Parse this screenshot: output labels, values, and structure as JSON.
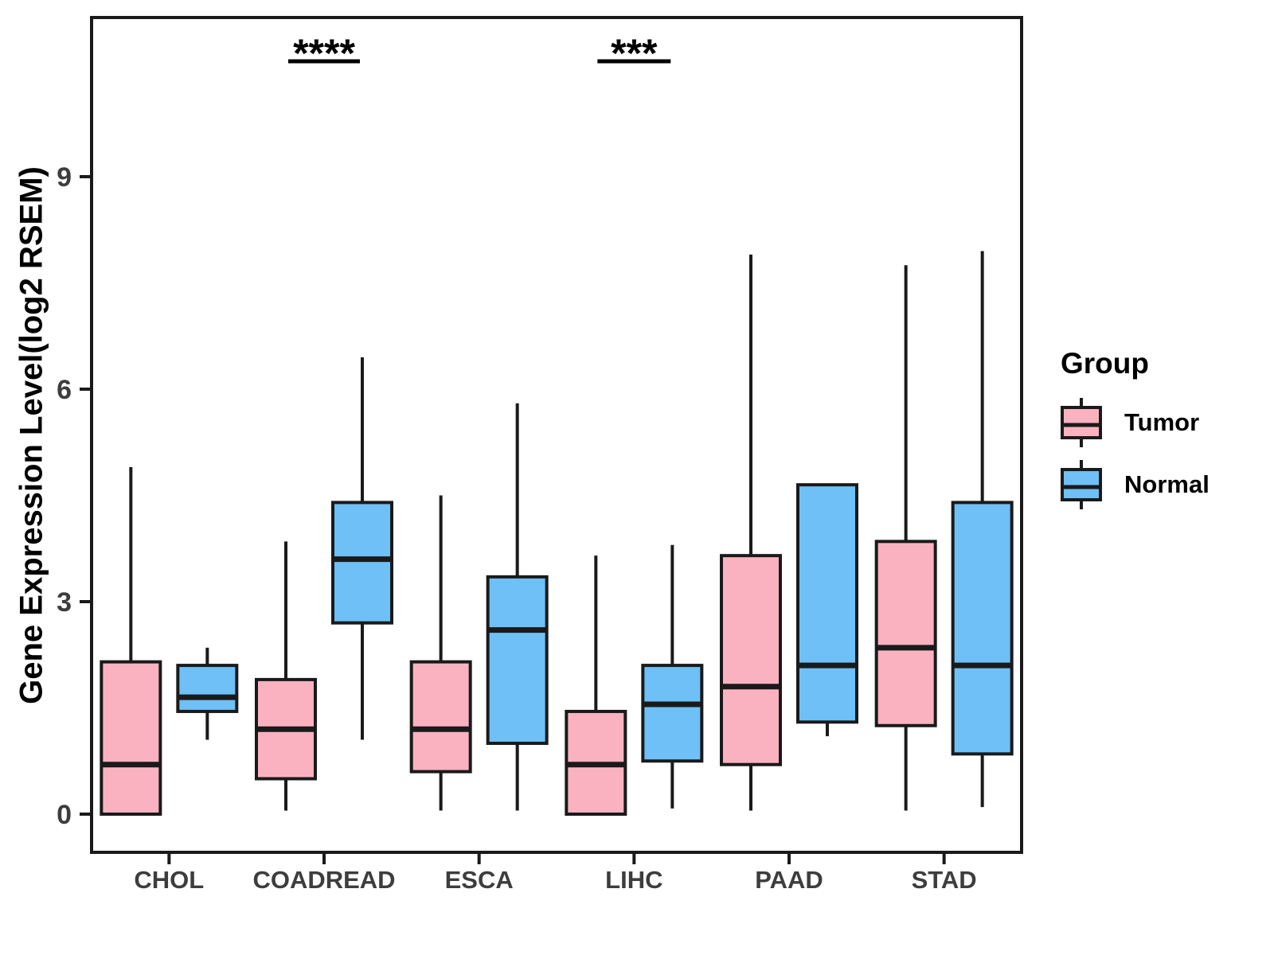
{
  "chart_data": {
    "type": "boxplot",
    "title": "",
    "ylabel": "Gene Expression Level(log2 RSEM)",
    "xlabel": "",
    "yticks": [
      0,
      3,
      6,
      9
    ],
    "ylim": [
      -0.55,
      11.3
    ],
    "grid": false,
    "legend_title": "Group",
    "legend_position": "right",
    "categories": [
      "CHOL",
      "COADREAD",
      "ESCA",
      "LIHC",
      "PAAD",
      "STAD"
    ],
    "series": [
      {
        "name": "Tumor",
        "color": "#FAB2C1",
        "boxes": [
          {
            "low": 0.0,
            "q1": 0.0,
            "median": 0.7,
            "q3": 2.15,
            "high": 4.9
          },
          {
            "low": 0.05,
            "q1": 0.5,
            "median": 1.2,
            "q3": 1.9,
            "high": 3.85
          },
          {
            "low": 0.05,
            "q1": 0.6,
            "median": 1.2,
            "q3": 2.15,
            "high": 4.5
          },
          {
            "low": 0.0,
            "q1": 0.0,
            "median": 0.7,
            "q3": 1.45,
            "high": 3.65
          },
          {
            "low": 0.05,
            "q1": 0.7,
            "median": 1.8,
            "q3": 3.65,
            "high": 7.9
          },
          {
            "low": 0.05,
            "q1": 1.25,
            "median": 2.35,
            "q3": 3.85,
            "high": 7.75
          }
        ]
      },
      {
        "name": "Normal",
        "color": "#6EC0F6",
        "boxes": [
          {
            "low": 1.05,
            "q1": 1.45,
            "median": 1.65,
            "q3": 2.1,
            "high": 2.35
          },
          {
            "low": 1.05,
            "q1": 2.7,
            "median": 3.6,
            "q3": 4.4,
            "high": 6.45
          },
          {
            "low": 0.05,
            "q1": 1.0,
            "median": 2.6,
            "q3": 3.35,
            "high": 5.8
          },
          {
            "low": 0.08,
            "q1": 0.75,
            "median": 1.55,
            "q3": 2.1,
            "high": 3.8
          },
          {
            "low": 1.1,
            "q1": 1.3,
            "median": 2.1,
            "q3": 4.65,
            "high": 4.65
          },
          {
            "low": 0.1,
            "q1": 0.85,
            "median": 2.1,
            "q3": 4.4,
            "high": 7.95
          }
        ]
      }
    ],
    "significance": [
      {
        "category": "COADREAD",
        "label": "****"
      },
      {
        "category": "LIHC",
        "label": "***"
      }
    ],
    "colors": {
      "box_stroke": "#1A1A1A",
      "axis_line": "#1A1A1A",
      "tick_text": "#3D3D3D",
      "annotation": "#000000",
      "background": "#FFFFFF"
    }
  }
}
